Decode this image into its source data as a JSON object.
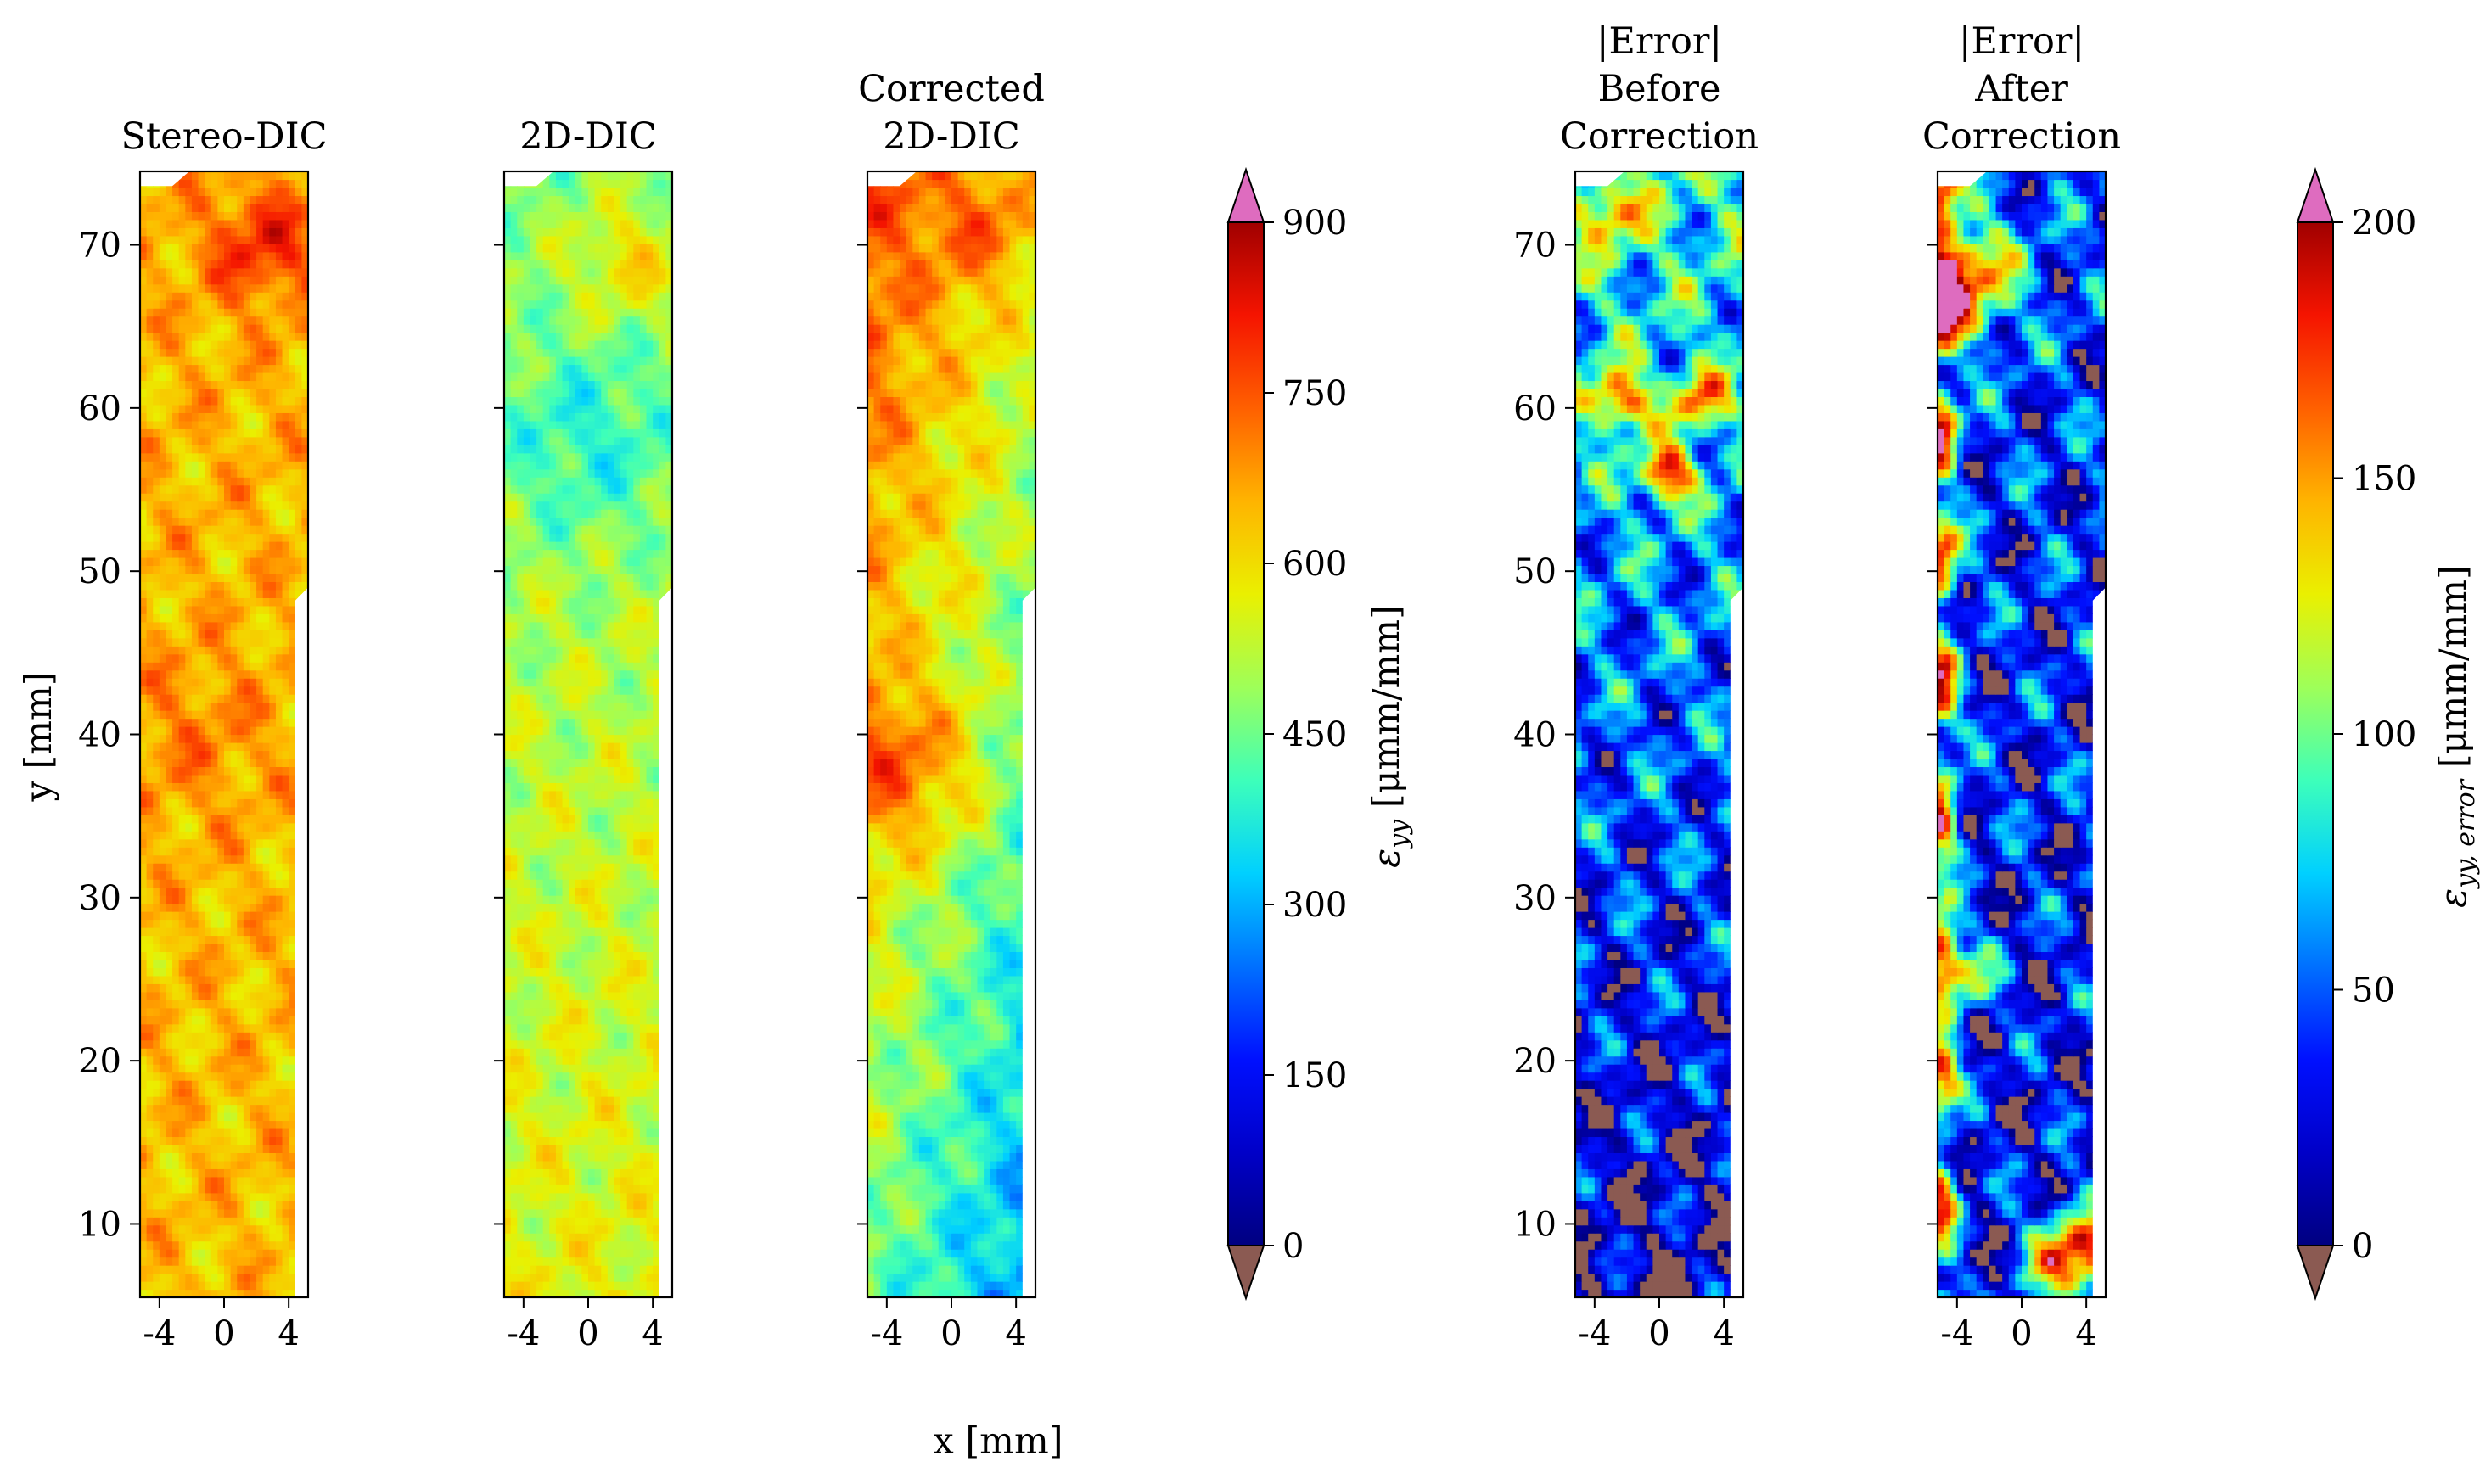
{
  "colors": {
    "jet": [
      "#000080",
      "#0000c8",
      "#0010ff",
      "#0070ff",
      "#00d0ff",
      "#3dffba",
      "#9eff59",
      "#eaf000",
      "#ffb400",
      "#ff6000",
      "#f51400",
      "#a00000"
    ],
    "extend_low": "#8b5a52",
    "extend_high": "#de6cbf",
    "frame": "#000000"
  },
  "chart_data": {
    "type": "heatmap",
    "xlabel": "x [mm]",
    "ylabel": "y [mm]",
    "xlim": [
      -5.2,
      5.2
    ],
    "ylim": [
      5.5,
      74.5
    ],
    "xticks": [
      -4,
      0,
      4
    ],
    "yticks": [
      10,
      20,
      30,
      40,
      50,
      60,
      70
    ],
    "colorbars": [
      {
        "id": "strain",
        "label": "ε_yy [μmm/mm]",
        "label_main": "ε",
        "label_sub": "yy",
        "label_rest": " [μmm/mm]",
        "range": [
          0,
          900
        ],
        "ticks": [
          0,
          150,
          300,
          450,
          600,
          750,
          900
        ],
        "extend": "both"
      },
      {
        "id": "error",
        "label": "ε_yy, error [μmm/mm]",
        "label_main": "ε",
        "label_sub": "yy, error",
        "label_rest": " [μmm/mm]",
        "range": [
          0,
          200
        ],
        "ticks": [
          0,
          50,
          100,
          150,
          200
        ],
        "extend": "both"
      }
    ],
    "panels": [
      {
        "title": [
          "Stereo-DIC"
        ],
        "scale": "strain",
        "field": {
          "base": 645,
          "trend_y": 0.2,
          "amp": 75,
          "seed": 1,
          "hotspots": [
            {
              "x": 2.5,
              "y": 70,
              "r": 3.5,
              "v": 150
            },
            {
              "x": -2,
              "y": 40,
              "r": 5,
              "v": 55
            }
          ],
          "notch": true
        }
      },
      {
        "title": [
          "2D-DIC"
        ],
        "scale": "strain",
        "field": {
          "base": 520,
          "trend_y": -1.3,
          "amp": 65,
          "seed": 2,
          "hotspots": [
            {
              "x": 2.5,
              "y": 69,
              "r": 3.5,
              "v": 120
            },
            {
              "x": 0,
              "y": 58,
              "r": 6,
              "v": -110
            }
          ],
          "notch": true
        }
      },
      {
        "title": [
          "Corrected",
          "2D-DIC"
        ],
        "scale": "strain",
        "field": {
          "base": 520,
          "trend_y": 4.5,
          "amp": 70,
          "seed": 3,
          "tilt_x": -18,
          "hotspots": [
            {
              "x": -3,
              "y": 38,
              "r": 5,
              "v": 170
            },
            {
              "x": 2.5,
              "y": 71,
              "r": 3.5,
              "v": 110
            }
          ],
          "notch": true
        }
      },
      {
        "title": [
          "|Error|",
          "Before",
          "Correction"
        ],
        "scale": "error",
        "field": {
          "base": 50,
          "trend_y": 1.1,
          "amp": 42,
          "seed": 4,
          "hotspots": [
            {
              "x": 0.5,
              "y": 56,
              "r": 1.6,
              "v": 130
            },
            {
              "x": -2.5,
              "y": 60.5,
              "r": 1.8,
              "v": 110
            },
            {
              "x": 2.5,
              "y": 60.5,
              "r": 1.8,
              "v": 90
            },
            {
              "x": -3,
              "y": 72,
              "r": 2,
              "v": 70
            }
          ],
          "notch": true
        }
      },
      {
        "title": [
          "|Error|",
          "After",
          "Correction"
        ],
        "scale": "error",
        "field": {
          "base": 35,
          "trend_y": 0.3,
          "amp": 45,
          "seed": 5,
          "edge_left": 150,
          "hotspots": [
            {
              "x": -4.3,
              "y": 68,
              "r": 3.5,
              "v": 150
            },
            {
              "x": 3.5,
              "y": 8,
              "r": 2.8,
              "v": 170
            },
            {
              "x": -3.5,
              "y": 25,
              "r": 2,
              "v": 80
            }
          ],
          "notch": true
        }
      }
    ]
  }
}
